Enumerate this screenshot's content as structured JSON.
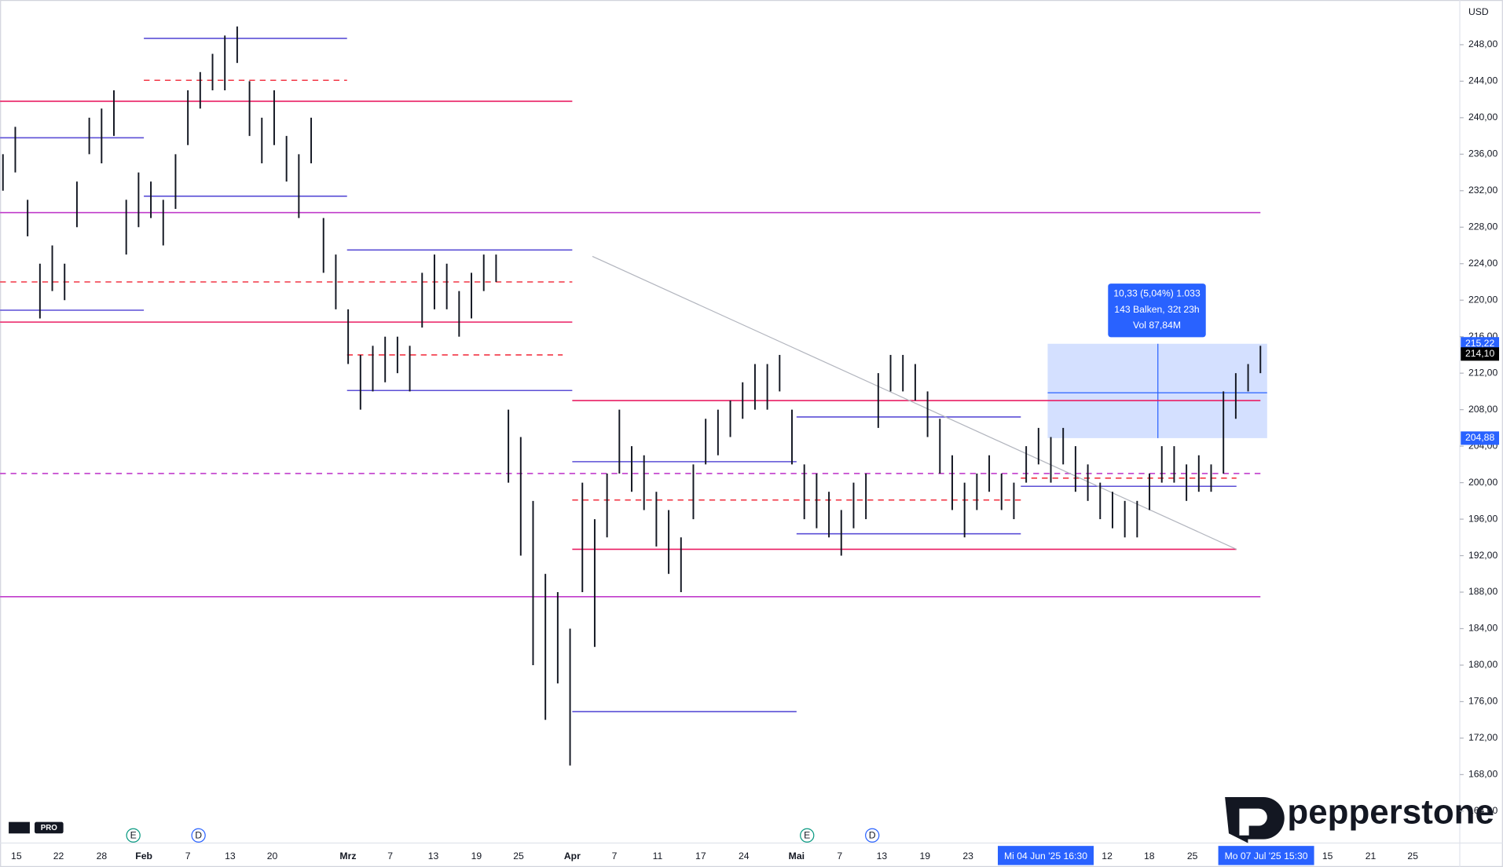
{
  "chart_data": {
    "type": "range-bar",
    "currency": "USD",
    "ylim": [
      160.5,
      252.9
    ],
    "yticks": [
      {
        "value": 248,
        "label": "248,00"
      },
      {
        "value": 244,
        "label": "244,00"
      },
      {
        "value": 240,
        "label": "240,00"
      },
      {
        "value": 236,
        "label": "236,00"
      },
      {
        "value": 232,
        "label": "232,00"
      },
      {
        "value": 228,
        "label": "228,00"
      },
      {
        "value": 224,
        "label": "224,00"
      },
      {
        "value": 220,
        "label": "220,00"
      },
      {
        "value": 216,
        "label": "216,00"
      },
      {
        "value": 212,
        "label": "212,00"
      },
      {
        "value": 208,
        "label": "208,00"
      },
      {
        "value": 204,
        "label": "204,00"
      },
      {
        "value": 200,
        "label": "200,00"
      },
      {
        "value": 196,
        "label": "196,00"
      },
      {
        "value": 192,
        "label": "192,00"
      },
      {
        "value": 188,
        "label": "188,00"
      },
      {
        "value": 184,
        "label": "184,00"
      },
      {
        "value": 180,
        "label": "180,00"
      },
      {
        "value": 176,
        "label": "176,00"
      },
      {
        "value": 172,
        "label": "172,00"
      },
      {
        "value": 168,
        "label": "168,00"
      },
      {
        "value": 164,
        "label": "164,00"
      }
    ],
    "xticks": [
      "15",
      "22",
      "28",
      "Feb",
      "7",
      "13",
      "20",
      "Mrz",
      "7",
      "13",
      "19",
      "25",
      "Apr",
      "7",
      "11",
      "17",
      "24",
      "Mai",
      "7",
      "13",
      "19",
      "23",
      "Mi 04 Jun '25   16:30",
      "12",
      "18",
      "25",
      "Mo 07 Jul '25   15:30",
      "15",
      "21",
      "25"
    ],
    "highs": [
      236,
      239,
      231,
      224,
      226,
      224,
      233,
      240,
      241,
      243,
      231,
      234,
      233,
      231,
      236,
      243,
      245,
      247,
      249,
      250,
      244,
      240,
      243,
      238,
      236,
      240,
      229,
      225,
      219,
      214,
      215,
      216,
      216,
      215,
      223,
      225,
      224,
      221,
      223,
      225,
      225,
      208,
      205,
      198,
      190,
      188,
      184,
      200,
      196,
      201,
      208,
      204,
      203,
      199,
      197,
      194,
      202,
      207,
      208,
      209,
      211,
      213,
      213,
      214,
      208,
      202,
      201,
      199,
      197,
      200,
      201,
      212,
      214,
      214,
      213,
      210,
      207,
      203,
      200,
      201,
      203,
      201,
      200,
      204,
      206,
      205,
      206,
      204,
      202,
      200,
      199,
      198,
      198,
      201,
      204,
      204,
      202,
      203,
      202,
      210,
      212,
      213,
      215
    ],
    "lows": [
      232,
      234,
      227,
      218,
      221,
      220,
      228,
      236,
      235,
      238,
      225,
      228,
      229,
      226,
      230,
      237,
      241,
      243,
      243,
      246,
      238,
      235,
      237,
      233,
      229,
      235,
      223,
      219,
      213,
      208,
      210,
      211,
      212,
      210,
      217,
      219,
      219,
      216,
      218,
      221,
      222,
      200,
      192,
      180,
      174,
      178,
      169,
      188,
      182,
      194,
      201,
      199,
      197,
      193,
      190,
      188,
      196,
      202,
      203,
      205,
      207,
      208,
      208,
      210,
      202,
      196,
      195,
      194,
      192,
      195,
      196,
      206,
      210,
      210,
      209,
      205,
      201,
      197,
      194,
      197,
      199,
      197,
      196,
      200,
      202,
      200,
      202,
      199,
      198,
      196,
      195,
      194,
      194,
      197,
      200,
      200,
      198,
      199,
      199,
      201,
      207,
      210,
      212
    ],
    "levels": [
      {
        "value": 248.7,
        "color": "#5b4fd6",
        "dashed": false
      },
      {
        "value": 244.1,
        "color": "#f23645",
        "dashed": true
      },
      {
        "value": 241.8,
        "color": "#e91e63",
        "dashed": false
      },
      {
        "value": 237.8,
        "color": "#5b4fd6",
        "dashed": false
      },
      {
        "value": 231.4,
        "color": "#5b4fd6",
        "dashed": false
      },
      {
        "value": 229.6,
        "color": "#c03ccb",
        "dashed": false
      },
      {
        "value": 225.5,
        "color": "#5b4fd6",
        "dashed": false
      },
      {
        "value": 222.0,
        "color": "#f23645",
        "dashed": true
      },
      {
        "value": 218.9,
        "color": "#5b4fd6",
        "dashed": false
      },
      {
        "value": 217.6,
        "color": "#e91e63",
        "dashed": false
      },
      {
        "value": 214.0,
        "color": "#f23645",
        "dashed": true
      },
      {
        "value": 210.1,
        "color": "#5b4fd6",
        "dashed": false
      },
      {
        "value": 209.0,
        "color": "#e91e63",
        "dashed": false
      },
      {
        "value": 207.2,
        "color": "#5b4fd6",
        "dashed": false
      },
      {
        "value": 202.3,
        "color": "#5b4fd6",
        "dashed": false
      },
      {
        "value": 201.0,
        "color": "#c03ccb",
        "dashed": true
      },
      {
        "value": 200.5,
        "color": "#f23645",
        "dashed": true
      },
      {
        "value": 199.6,
        "color": "#5b4fd6",
        "dashed": false
      },
      {
        "value": 198.1,
        "color": "#f23645",
        "dashed": true
      },
      {
        "value": 194.4,
        "color": "#5b4fd6",
        "dashed": false
      },
      {
        "value": 192.7,
        "color": "#e91e63",
        "dashed": false
      },
      {
        "value": 187.5,
        "color": "#c03ccb",
        "dashed": false
      },
      {
        "value": 174.9,
        "color": "#5b4fd6",
        "dashed": false
      }
    ],
    "trendline": [
      224.8,
      192.7
    ],
    "measure": {
      "from": 204.88,
      "to": 215.22,
      "lines": [
        "10,33 (5,04%) 1.033",
        "143 Balken, 32t 23h",
        "Vol 87,84M"
      ]
    },
    "price_tags": [
      {
        "value": 215.22,
        "label": "215,22",
        "color": "#2962ff"
      },
      {
        "value": 214.1,
        "label": "214,10",
        "color": "#000000"
      },
      {
        "value": 204.88,
        "label": "204,88",
        "color": "#2962ff"
      }
    ],
    "events": [
      "E",
      "D",
      "E",
      "D"
    ],
    "brand": "pepperstone",
    "badge": "PRO"
  }
}
